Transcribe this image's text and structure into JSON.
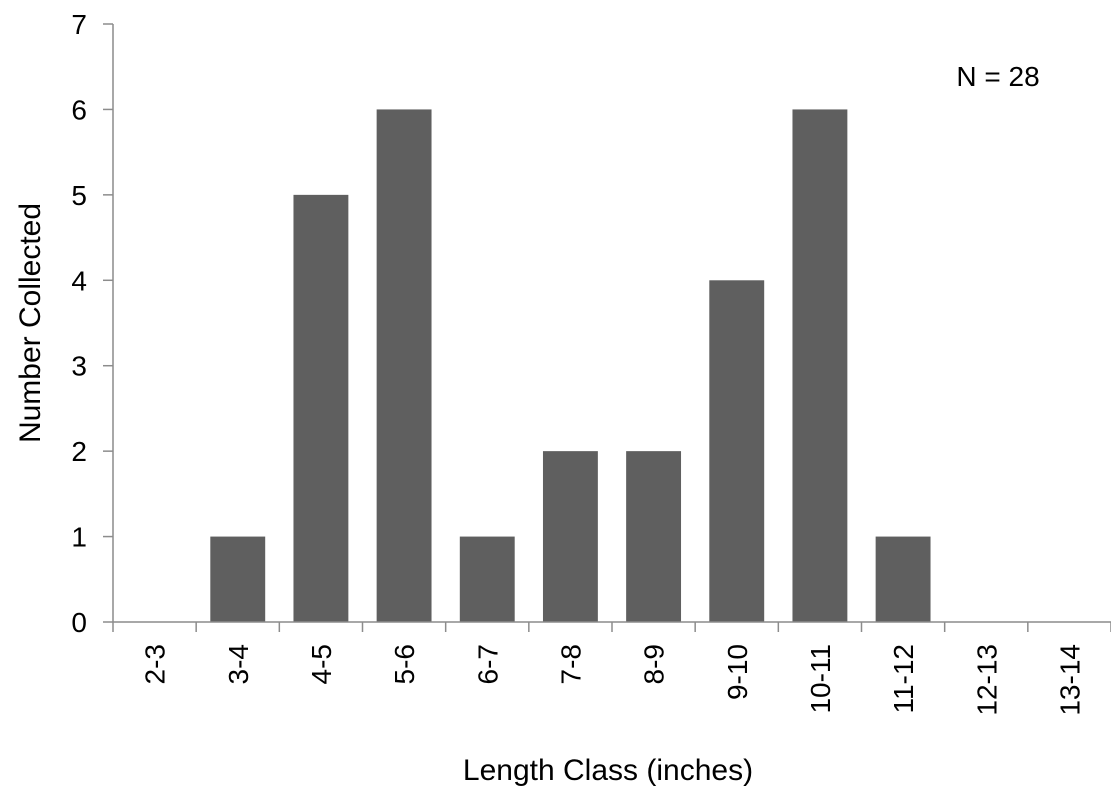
{
  "chart_data": {
    "type": "bar",
    "categories": [
      "2-3",
      "3-4",
      "4-5",
      "5-6",
      "6-7",
      "7-8",
      "8-9",
      "9-10",
      "10-11",
      "11-12",
      "12-13",
      "13-14"
    ],
    "values": [
      0,
      1,
      5,
      6,
      1,
      2,
      2,
      4,
      6,
      1,
      0,
      0
    ],
    "xlabel": "Length Class (inches)",
    "ylabel": "Number Collected",
    "ylim": [
      0,
      7
    ],
    "yticks": [
      0,
      1,
      2,
      3,
      4,
      5,
      6,
      7
    ],
    "grid": false,
    "annotation": "N = 28",
    "colors": {
      "bar": "#5f5f5f",
      "axis": "#8c8c8c"
    }
  }
}
